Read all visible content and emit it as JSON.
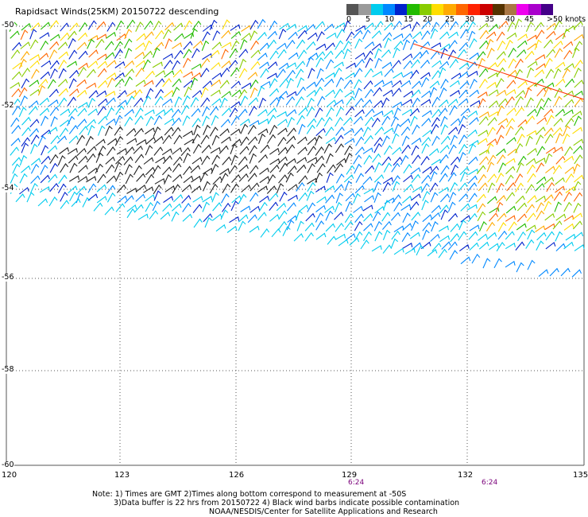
{
  "title": "Rapidsact Winds(25KM) 20150722 descending",
  "legend": {
    "labels": [
      "0",
      "5",
      "10",
      "15",
      "20",
      "25",
      "30",
      "35",
      "40",
      "45",
      ">50 knots"
    ],
    "colors": [
      "#555555",
      "#9a9a9a",
      "#00ccee",
      "#0088ff",
      "#0022cc",
      "#22bb00",
      "#88cc00",
      "#ffdd00",
      "#ffaa00",
      "#ff6600",
      "#ff2200",
      "#cc0000",
      "#553300",
      "#aa7744",
      "#ee00ee",
      "#aa00cc",
      "#440088"
    ]
  },
  "axes": {
    "lat_labels": [
      "-50",
      "-52",
      "-54",
      "-56",
      "-58",
      "-60"
    ],
    "lon_labels": [
      "120",
      "123",
      "126",
      "129",
      "132",
      "135"
    ],
    "time_labels": [
      "6:24",
      "6:24"
    ]
  },
  "notes": [
    "Note: 1) Times are GMT 2)Times along bottom correspond to measurement at -50S",
    "3)Data buffer is 22 hrs from 20150722 4) Black wind barbs indicate possible contamination",
    "NOAA/NESDIS/Center for Satellite Applications and Research"
  ],
  "colors": {
    "track_line": "#ff3300",
    "grid": "#555555",
    "contaminated": "#222222"
  }
}
